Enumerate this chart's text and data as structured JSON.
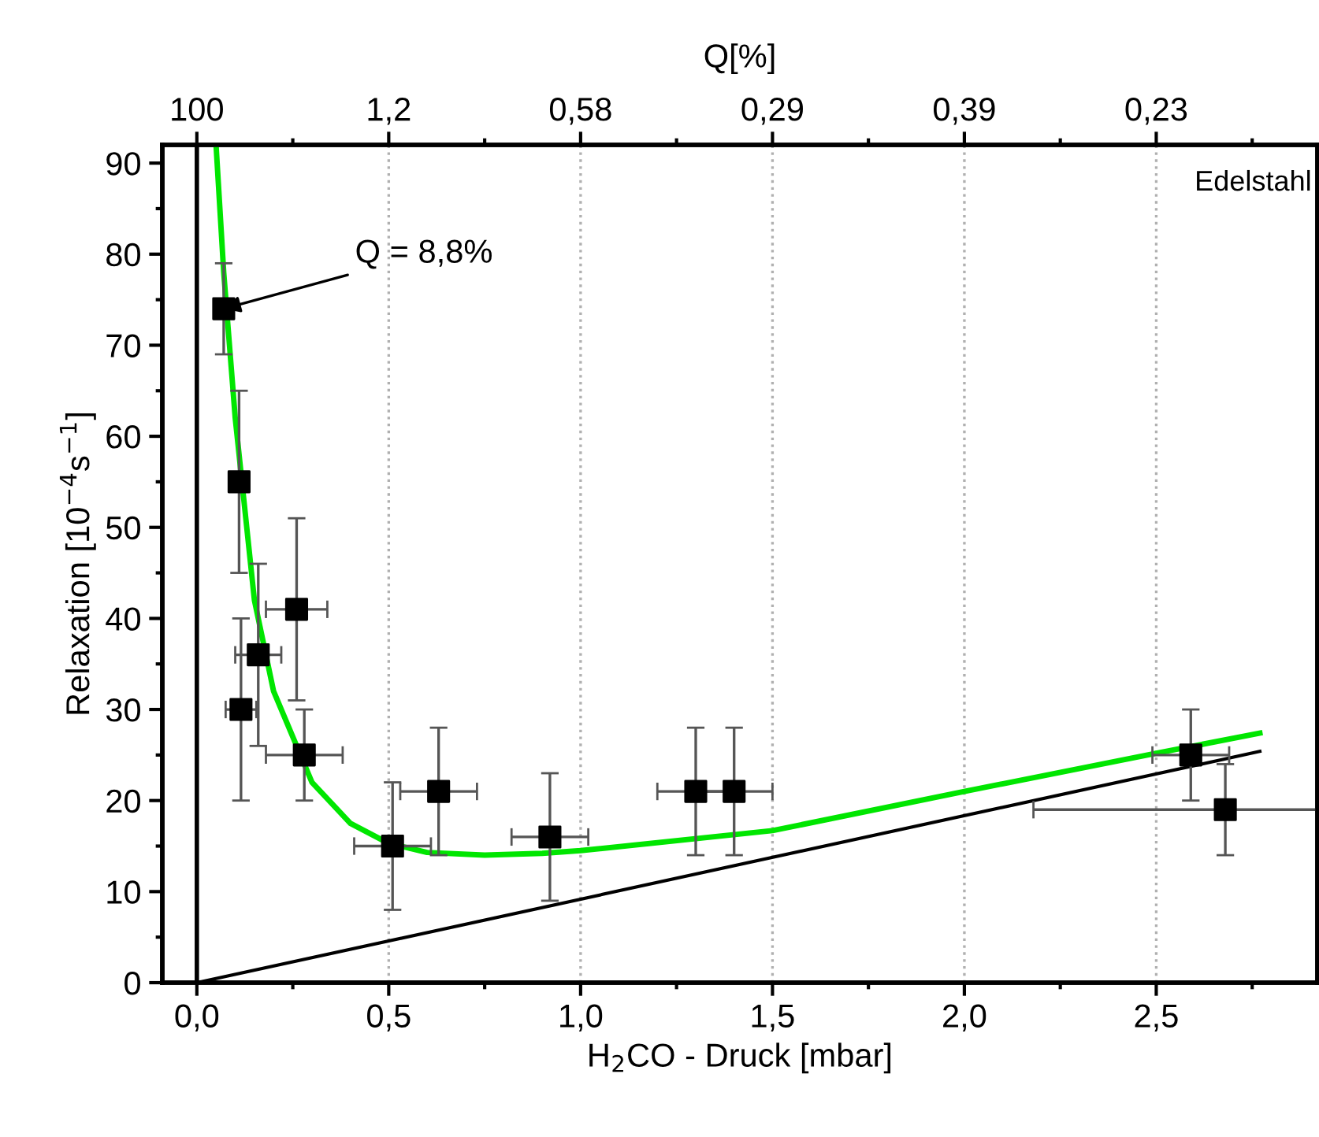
{
  "chart_data": {
    "type": "scatter",
    "xlabel": "H$_{2}$CO - Druck [mbar]",
    "ylabel": "Relaxation [10$^{−4}$s$^{−1}$]",
    "x2label": "Q[%]",
    "xlim": [
      -0.09,
      2.92
    ],
    "ylim": [
      0,
      92
    ],
    "xticks": [
      {
        "value": 0,
        "label": "0,0"
      },
      {
        "value": 0.25,
        "label": null
      },
      {
        "value": 0.5,
        "label": "0,5"
      },
      {
        "value": 0.75,
        "label": null
      },
      {
        "value": 1,
        "label": "1,0"
      },
      {
        "value": 1.25,
        "label": null
      },
      {
        "value": 1.5,
        "label": "1,5"
      },
      {
        "value": 1.75,
        "label": null
      },
      {
        "value": 2,
        "label": "2,0"
      },
      {
        "value": 2.25,
        "label": null
      },
      {
        "value": 2.5,
        "label": "2,5"
      },
      {
        "value": 2.75,
        "label": null
      }
    ],
    "yticks": [
      0,
      {
        "value": 5,
        "label": null
      },
      10,
      {
        "value": 15,
        "label": null
      },
      20,
      {
        "value": 25,
        "label": null
      },
      30,
      {
        "value": 35,
        "label": null
      },
      40,
      {
        "value": 45,
        "label": null
      },
      50,
      {
        "value": 55,
        "label": null
      },
      60,
      {
        "value": 65,
        "label": null
      },
      70,
      {
        "value": 75,
        "label": null
      },
      80,
      {
        "value": 85,
        "label": null
      },
      90
    ],
    "grid": "x",
    "marker": "square",
    "ref_lines": [
      {
        "axis": "x",
        "value": 0,
        "color": "#000000"
      }
    ],
    "series": [
      {
        "color": "#000000",
        "x": [
          0.07,
          0.11,
          0.115,
          0.16,
          0.26,
          0.28,
          0.51,
          0.63,
          0.92,
          1.3,
          1.4,
          2.59,
          2.68
        ],
        "values": [
          74,
          55,
          30,
          36,
          41,
          25,
          15,
          21,
          16,
          21,
          21,
          25,
          19
        ],
        "errors": [
          5,
          10,
          10,
          10,
          10,
          5,
          7,
          7,
          7,
          7,
          7,
          5,
          5
        ],
        "xerrors": [
          0.02,
          0.02,
          0.04,
          0.06,
          0.08,
          0.1,
          0.1,
          0.1,
          0.1,
          0.1,
          0.1,
          0.1,
          [
            2.18,
            2.92
          ]
        ]
      },
      {
        "type": "line",
        "color": "#00e600",
        "line_style": "solid",
        "marker": "none",
        "x": [
          0.05,
          0.07,
          0.1,
          0.15,
          0.2,
          0.3,
          0.4,
          0.5,
          0.6,
          0.75,
          0.9,
          1.0,
          1.5,
          2.0,
          2.5,
          2.77
        ],
        "values": [
          92,
          78,
          62,
          42,
          32,
          22,
          17.5,
          15.3,
          14.3,
          14,
          14.2,
          14.5,
          16.7,
          21,
          25.2,
          27.4
        ]
      },
      {
        "type": "line",
        "color": "#000000",
        "line_style": "solid",
        "marker": "none",
        "x": [
          0,
          2.77
        ],
        "values": [
          0,
          25.4
        ]
      }
    ],
    "annotations": [
      {
        "text": "100",
        "x": 0
      },
      {
        "text": "1,2",
        "x": 0.5
      },
      {
        "text": "0,58",
        "x": 1
      },
      {
        "text": "0,29",
        "x": 1.5
      },
      {
        "text": "0,39",
        "x": 2
      },
      {
        "text": "0,23",
        "x": 2.5
      },
      {
        "text": "Q = 8,8%",
        "x": 0.07,
        "y": 74
      },
      "Edelstahl"
    ]
  }
}
